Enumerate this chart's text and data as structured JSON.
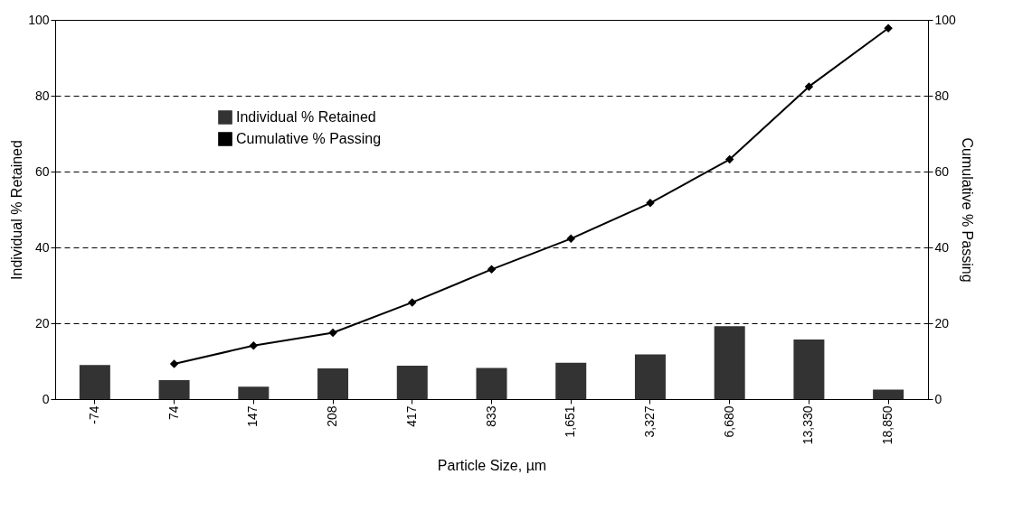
{
  "chart_data": {
    "type": "bar",
    "xlabel": "Particle Size, µm",
    "ylabel": "Individual % Retained",
    "y2label": "Cumulative % Passing",
    "categories": [
      "-74",
      "74",
      "147",
      "208",
      "417",
      "833",
      "1,651",
      "3,327",
      "6,680",
      "13,330",
      "18,850"
    ],
    "series": [
      {
        "name": "Individual % Retained",
        "color": "#333333",
        "values": [
          9.0,
          5.0,
          3.3,
          8.1,
          8.8,
          8.2,
          9.6,
          11.8,
          19.2,
          15.7,
          2.5
        ]
      },
      {
        "name": "Cumulative % Passing",
        "type": "line",
        "axis": "y2",
        "color": "#000000",
        "marker": "diamond",
        "values": [
          null,
          9.3,
          14.1,
          17.5,
          25.5,
          34.2,
          42.3,
          51.7,
          63.2,
          82.4,
          97.8
        ]
      }
    ],
    "ylim": [
      0,
      100
    ],
    "yticks": [
      0,
      20,
      40,
      60,
      80,
      100
    ],
    "y2lim": [
      0,
      100
    ],
    "y2ticks": [
      0,
      20,
      40,
      60,
      80,
      100
    ],
    "grid": "y",
    "legend": "left"
  }
}
